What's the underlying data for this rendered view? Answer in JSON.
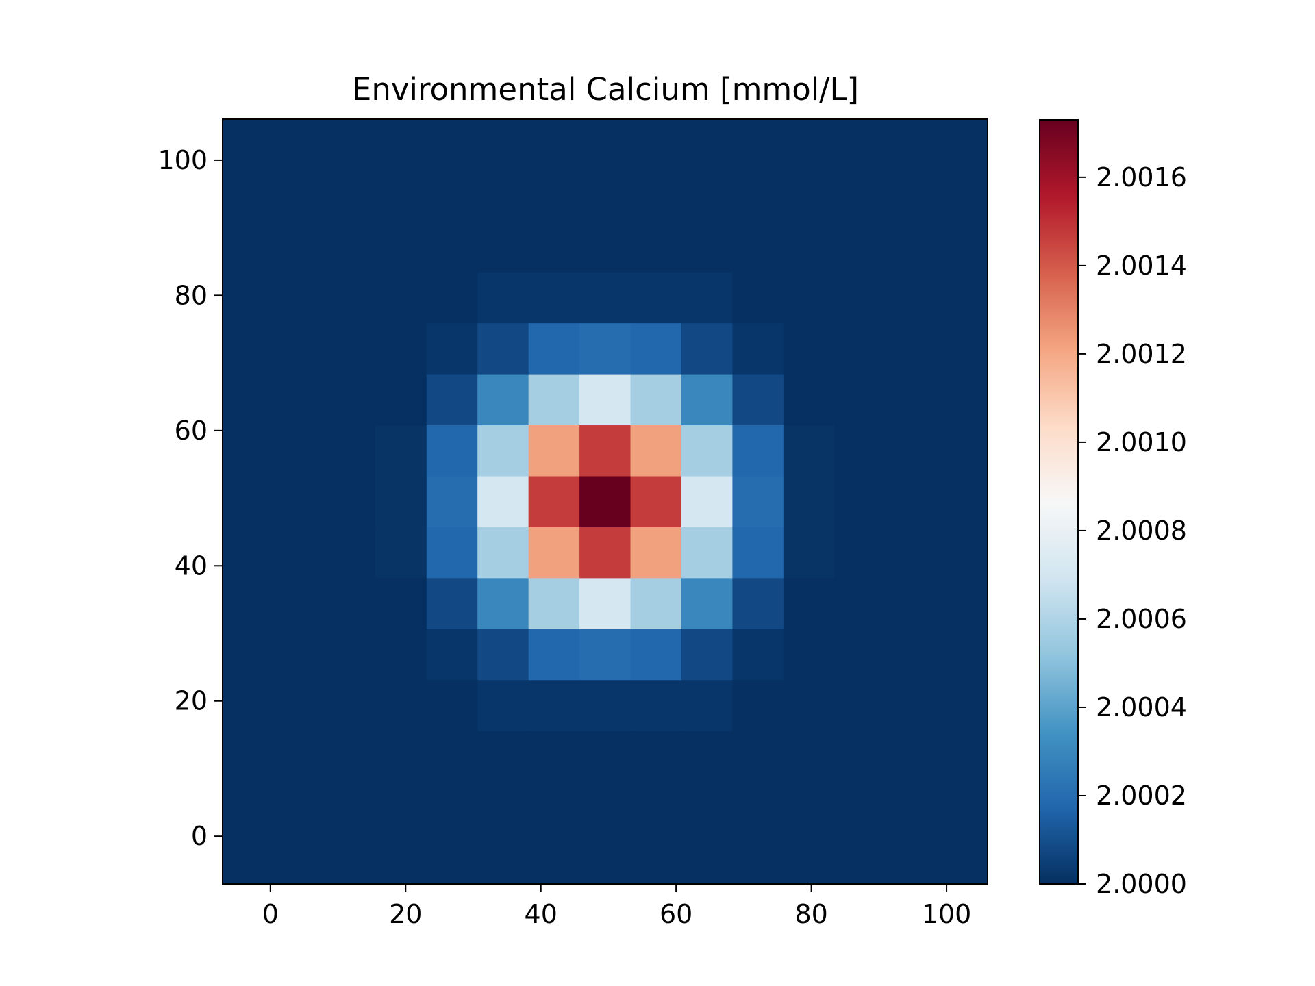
{
  "chart_data": {
    "type": "heatmap",
    "title": "Environmental Calcium [mmol/L]",
    "xlabel": "",
    "ylabel": "",
    "xlim": [
      -7.07,
      106.07
    ],
    "ylim": [
      -7.07,
      106.07
    ],
    "x_ticks": [
      0,
      20,
      40,
      60,
      80,
      100
    ],
    "x_tick_labels": [
      "0",
      "20",
      "40",
      "60",
      "80",
      "100"
    ],
    "y_ticks": [
      0,
      20,
      40,
      60,
      80,
      100
    ],
    "y_tick_labels": [
      "0",
      "20",
      "40",
      "60",
      "80",
      "100"
    ],
    "grid": false,
    "cell_size": 7.54,
    "cell_origin": -7.07,
    "grid_cells": 15,
    "colormap": "RdBu_r",
    "colormap_stops": [
      "#053061",
      "#2166ac",
      "#4393c3",
      "#92c5de",
      "#d1e5f0",
      "#f7f7f7",
      "#fddbc7",
      "#f4a582",
      "#d6604d",
      "#b2182b",
      "#67001f"
    ],
    "value_range": [
      2.0,
      2.00173
    ],
    "colorbar_ticks": [
      2.0,
      2.0002,
      2.0004,
      2.0006,
      2.0008,
      2.001,
      2.0012,
      2.0014,
      2.0016
    ],
    "colorbar_tick_labels": [
      "2.0000",
      "2.0002",
      "2.0004",
      "2.0006",
      "2.0008",
      "2.0010",
      "2.0012",
      "2.0014",
      "2.0016"
    ],
    "base_value": 2.0,
    "cells": [
      {
        "row": 3,
        "col": 5,
        "value": 2.00002
      },
      {
        "row": 3,
        "col": 6,
        "value": 2.00002
      },
      {
        "row": 3,
        "col": 7,
        "value": 2.00002
      },
      {
        "row": 3,
        "col": 8,
        "value": 2.00002
      },
      {
        "row": 3,
        "col": 9,
        "value": 2.00002
      },
      {
        "row": 4,
        "col": 4,
        "value": 2.00002
      },
      {
        "row": 4,
        "col": 5,
        "value": 2.00008
      },
      {
        "row": 4,
        "col": 6,
        "value": 2.00018
      },
      {
        "row": 4,
        "col": 7,
        "value": 2.0002
      },
      {
        "row": 4,
        "col": 8,
        "value": 2.00018
      },
      {
        "row": 4,
        "col": 9,
        "value": 2.00008
      },
      {
        "row": 4,
        "col": 10,
        "value": 2.00002
      },
      {
        "row": 5,
        "col": 4,
        "value": 2.00008
      },
      {
        "row": 5,
        "col": 5,
        "value": 2.0003
      },
      {
        "row": 5,
        "col": 6,
        "value": 2.00057
      },
      {
        "row": 5,
        "col": 7,
        "value": 2.00071
      },
      {
        "row": 5,
        "col": 8,
        "value": 2.00057
      },
      {
        "row": 5,
        "col": 9,
        "value": 2.0003
      },
      {
        "row": 5,
        "col": 10,
        "value": 2.00008
      },
      {
        "row": 6,
        "col": 3,
        "value": 2.00001
      },
      {
        "row": 6,
        "col": 4,
        "value": 2.00018
      },
      {
        "row": 6,
        "col": 5,
        "value": 2.00057
      },
      {
        "row": 6,
        "col": 6,
        "value": 2.00122
      },
      {
        "row": 6,
        "col": 7,
        "value": 2.00147
      },
      {
        "row": 6,
        "col": 8,
        "value": 2.00122
      },
      {
        "row": 6,
        "col": 9,
        "value": 2.00057
      },
      {
        "row": 6,
        "col": 10,
        "value": 2.00018
      },
      {
        "row": 6,
        "col": 11,
        "value": 2.00001
      },
      {
        "row": 7,
        "col": 3,
        "value": 2.00001
      },
      {
        "row": 7,
        "col": 4,
        "value": 2.0002
      },
      {
        "row": 7,
        "col": 5,
        "value": 2.00071
      },
      {
        "row": 7,
        "col": 6,
        "value": 2.00147
      },
      {
        "row": 7,
        "col": 7,
        "value": 2.00173
      },
      {
        "row": 7,
        "col": 8,
        "value": 2.00147
      },
      {
        "row": 7,
        "col": 9,
        "value": 2.00071
      },
      {
        "row": 7,
        "col": 10,
        "value": 2.0002
      },
      {
        "row": 7,
        "col": 11,
        "value": 2.00001
      },
      {
        "row": 8,
        "col": 3,
        "value": 2.00001
      },
      {
        "row": 8,
        "col": 4,
        "value": 2.00018
      },
      {
        "row": 8,
        "col": 5,
        "value": 2.00057
      },
      {
        "row": 8,
        "col": 6,
        "value": 2.00122
      },
      {
        "row": 8,
        "col": 7,
        "value": 2.00147
      },
      {
        "row": 8,
        "col": 8,
        "value": 2.00122
      },
      {
        "row": 8,
        "col": 9,
        "value": 2.00057
      },
      {
        "row": 8,
        "col": 10,
        "value": 2.00018
      },
      {
        "row": 8,
        "col": 11,
        "value": 2.00001
      },
      {
        "row": 9,
        "col": 4,
        "value": 2.00008
      },
      {
        "row": 9,
        "col": 5,
        "value": 2.0003
      },
      {
        "row": 9,
        "col": 6,
        "value": 2.00057
      },
      {
        "row": 9,
        "col": 7,
        "value": 2.00071
      },
      {
        "row": 9,
        "col": 8,
        "value": 2.00057
      },
      {
        "row": 9,
        "col": 9,
        "value": 2.0003
      },
      {
        "row": 9,
        "col": 10,
        "value": 2.00008
      },
      {
        "row": 10,
        "col": 4,
        "value": 2.00002
      },
      {
        "row": 10,
        "col": 5,
        "value": 2.00008
      },
      {
        "row": 10,
        "col": 6,
        "value": 2.00018
      },
      {
        "row": 10,
        "col": 7,
        "value": 2.0002
      },
      {
        "row": 10,
        "col": 8,
        "value": 2.00018
      },
      {
        "row": 10,
        "col": 9,
        "value": 2.00008
      },
      {
        "row": 10,
        "col": 10,
        "value": 2.00002
      },
      {
        "row": 11,
        "col": 5,
        "value": 2.00002
      },
      {
        "row": 11,
        "col": 6,
        "value": 2.00002
      },
      {
        "row": 11,
        "col": 7,
        "value": 2.00002
      },
      {
        "row": 11,
        "col": 8,
        "value": 2.00002
      },
      {
        "row": 11,
        "col": 9,
        "value": 2.00002
      }
    ]
  }
}
